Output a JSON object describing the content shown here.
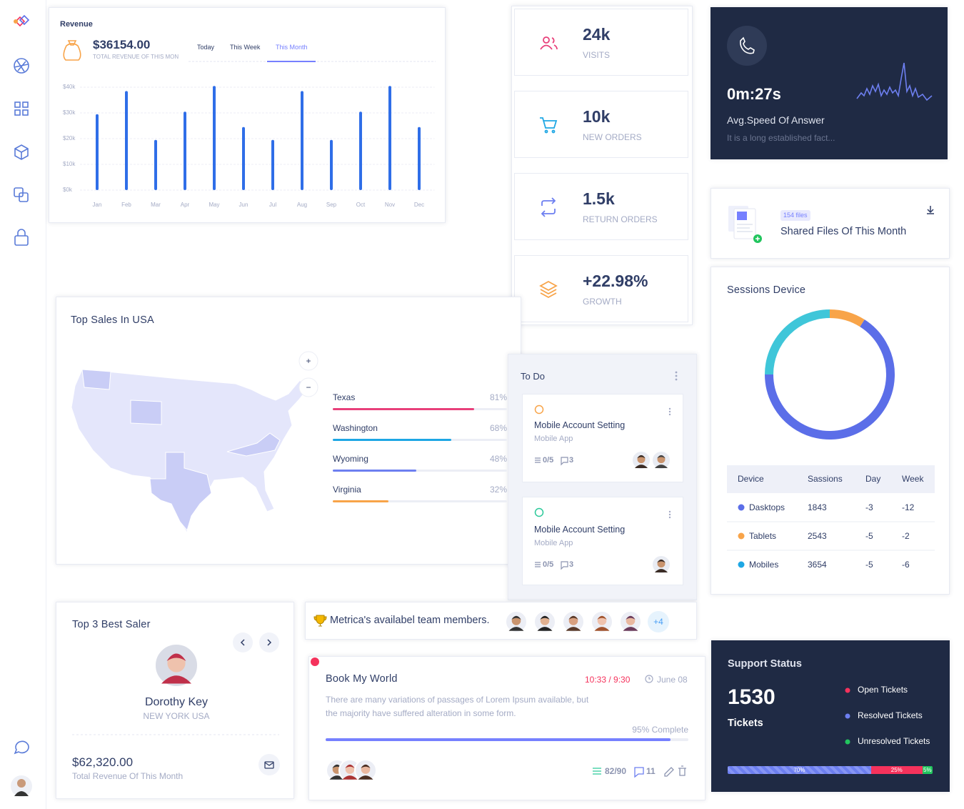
{
  "revenue": {
    "title": "Revenue",
    "amount": "$36154.00",
    "caption": "TOTAL REVENUE OF THIS MON",
    "tabs": [
      "Today",
      "This Week",
      "This Month"
    ]
  },
  "chart_data": [
    {
      "type": "bar",
      "categories": [
        "Jan",
        "Feb",
        "Mar",
        "Apr",
        "May",
        "Jun",
        "Jul",
        "Aug",
        "Sep",
        "Oct",
        "Nov",
        "Dec"
      ],
      "values": [
        29500,
        38500,
        19500,
        30500,
        40500,
        24500,
        19500,
        38500,
        19500,
        30500,
        40500,
        24500
      ],
      "color": "#2f6ee8",
      "ylim": [
        0,
        42000
      ],
      "yticks": [
        {
          "value": 0,
          "label": "$0k"
        },
        {
          "value": 10000,
          "label": "$10k"
        },
        {
          "value": 20000,
          "label": "$20k"
        },
        {
          "value": 30000,
          "label": "$30k"
        },
        {
          "value": 40000,
          "label": "$40k"
        }
      ],
      "grid": true
    },
    {
      "type": "donut",
      "values": [
        9,
        66,
        25
      ],
      "colors": [
        "#f8a449",
        "#5b6ee8",
        "#3fc6d9"
      ]
    }
  ],
  "stats": [
    {
      "value": "24k",
      "label": "VISITS"
    },
    {
      "value": "10k",
      "label": "NEW ORDERS"
    },
    {
      "value": "1.5k",
      "label": "RETURN ORDERS"
    },
    {
      "value": "+22.98%",
      "label": "GROWTH"
    }
  ],
  "answer": {
    "time": "0m:27s",
    "title": "Avg.Speed Of Answer",
    "text": "It is a long established fact..."
  },
  "files": {
    "badge": "154 files",
    "title": "Shared Files Of This Month"
  },
  "sessions": {
    "title": "Sessions Device",
    "columns": [
      "Device",
      "Sassions",
      "Day",
      "Week"
    ],
    "rows": [
      {
        "device": "Dasktops",
        "color": "#5b6ee8",
        "sessions": 1843,
        "day": -3,
        "week": -12
      },
      {
        "device": "Tablets",
        "color": "#f8a449",
        "sessions": 2543,
        "day": -5,
        "week": -2
      },
      {
        "device": "Mobiles",
        "color": "#1ea7e4",
        "sessions": 3654,
        "day": -5,
        "week": -6
      }
    ]
  },
  "top_sales": {
    "title": "Top Sales In USA",
    "zoom_in": "+",
    "zoom_out": "−",
    "states": {
      "categories": [
        "Texas",
        "Washington",
        "Wyoming",
        "Virginia"
      ],
      "values": [
        81,
        68,
        48,
        32
      ],
      "value_labels": [
        "81%",
        "68%",
        "48%",
        "32%"
      ],
      "colors": [
        "#e8407a",
        "#1ea7e4",
        "#6d7ff0",
        "#f8a449"
      ]
    }
  },
  "todo": {
    "title": "To Do",
    "items": [
      {
        "title": "Mobile Account Setting",
        "subtitle": "Mobile App",
        "tasks": "0/5",
        "comments": 3,
        "color": "#f8a449"
      },
      {
        "title": "Mobile Account Setting",
        "subtitle": "Mobile App",
        "tasks": "0/5",
        "comments": 3,
        "color": "#2cc99a"
      }
    ]
  },
  "best_saler": {
    "title": "Top 3 Best Saler",
    "name": "Dorothy Key",
    "location": "NEW YORK USA",
    "amount": "$62,320.00",
    "caption": "Total Revenue Of This Month"
  },
  "team": {
    "text": "Metrica's availabel team members.",
    "more": "+4"
  },
  "project": {
    "title": "Book My World",
    "time": "10:33 / 9:30",
    "date": "June 08",
    "description": "There are many variations of passages of Lorem Ipsum available, but the majority have suffered alteration in some form.",
    "progress": {
      "value": 95,
      "label": "95% Complete"
    },
    "tasks": "82/90",
    "comments": 11
  },
  "support": {
    "title": "Support Status",
    "count": 1530,
    "unit": "Tickets",
    "legend": [
      {
        "name": "Open Tickets",
        "color": "#f5325c"
      },
      {
        "name": "Resolved Tickets",
        "color": "#6d7ff0"
      },
      {
        "name": "Unresolved Tickets",
        "color": "#22c55e"
      }
    ],
    "bar": {
      "values": [
        70,
        25,
        5
      ],
      "value_labels": [
        "70%",
        "25%",
        "5%"
      ],
      "colors": [
        "#6d7ff0",
        "#f5325c",
        "#22c55e"
      ]
    }
  }
}
